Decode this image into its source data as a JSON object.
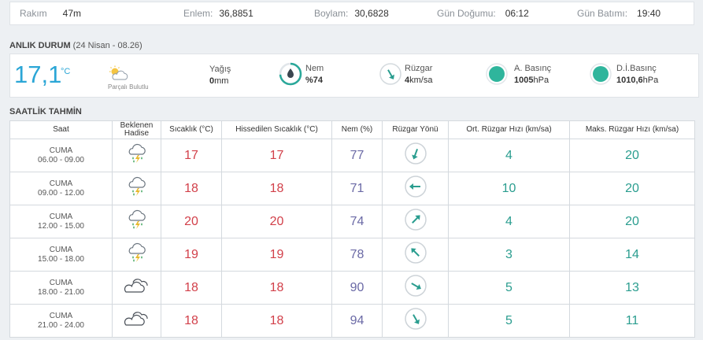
{
  "top": {
    "items": [
      {
        "label": "Rakım",
        "value": "47m"
      },
      {
        "label": "Enlem:",
        "value": "36,8851"
      },
      {
        "label": "Boylam:",
        "value": "30,6828"
      },
      {
        "label": "Gün Doğumu:",
        "value": "06:12"
      },
      {
        "label": "Gün Batımı:",
        "value": "19:40"
      }
    ]
  },
  "current": {
    "title": "ANLIK DURUM",
    "subtitle": "(24 Nisan - 08.26)",
    "temp": "17,1",
    "unit": "°C",
    "condition": "Parçalı Bulutlu",
    "condition_icon": "partly-cloudy-icon",
    "precip_label": "Yağış",
    "precip_value": "0",
    "precip_unit": "mm",
    "humidity_label": "Nem",
    "humidity_value": "%74",
    "humidity_level": 74,
    "wind_label": "Rüzgar",
    "wind_value": "4",
    "wind_unit": "km/sa",
    "pressure_label": "A. Basınç",
    "pressure_value": "1005",
    "pressure_unit": "hPa",
    "sea_pressure_label": "D.İ.Basınç",
    "sea_pressure_value": "1010,6",
    "sea_pressure_unit": "hPa"
  },
  "colors": {
    "accent": "#2ba6d6",
    "temp": "#d2404a",
    "humidity": "#6b6aa6",
    "wind": "#2a9d8f"
  },
  "hourly": {
    "title": "SAATLİK TAHMİN",
    "headers": {
      "time": "Saat",
      "event_line1": "Beklenen",
      "event_line2": "Hadise",
      "temp": "Sıcaklık (°C)",
      "feels": "Hissedilen Sıcaklık (°C)",
      "humidity": "Nem (%)",
      "wind_dir": "Rüzgar Yönü",
      "avg_wind": "Ort. Rüzgar Hızı (km/sa)",
      "max_wind": "Maks. Rüzgar Hızı (km/sa)"
    },
    "rows": [
      {
        "day": "CUMA",
        "time": "06.00 - 09.00",
        "icon": "thunder-rain-icon",
        "temp": "17",
        "feels": "17",
        "humidity": "77",
        "wind_angle": 200,
        "avg_wind": "4",
        "max_wind": "20"
      },
      {
        "day": "CUMA",
        "time": "09.00 - 12.00",
        "icon": "thunder-rain-icon",
        "temp": "18",
        "feels": "18",
        "humidity": "71",
        "wind_angle": 270,
        "avg_wind": "10",
        "max_wind": "20"
      },
      {
        "day": "CUMA",
        "time": "12.00 - 15.00",
        "icon": "thunder-rain-icon",
        "temp": "20",
        "feels": "20",
        "humidity": "74",
        "wind_angle": 45,
        "avg_wind": "4",
        "max_wind": "20"
      },
      {
        "day": "CUMA",
        "time": "15.00 - 18.00",
        "icon": "thunder-rain-icon",
        "temp": "19",
        "feels": "19",
        "humidity": "78",
        "wind_angle": 315,
        "avg_wind": "3",
        "max_wind": "14"
      },
      {
        "day": "CUMA",
        "time": "18.00 - 21.00",
        "icon": "cloud-icon",
        "temp": "18",
        "feels": "18",
        "humidity": "90",
        "wind_angle": 120,
        "avg_wind": "5",
        "max_wind": "13"
      },
      {
        "day": "CUMA",
        "time": "21.00 - 24.00",
        "icon": "cloud-icon",
        "temp": "18",
        "feels": "18",
        "humidity": "94",
        "wind_angle": 150,
        "avg_wind": "5",
        "max_wind": "11"
      }
    ]
  }
}
